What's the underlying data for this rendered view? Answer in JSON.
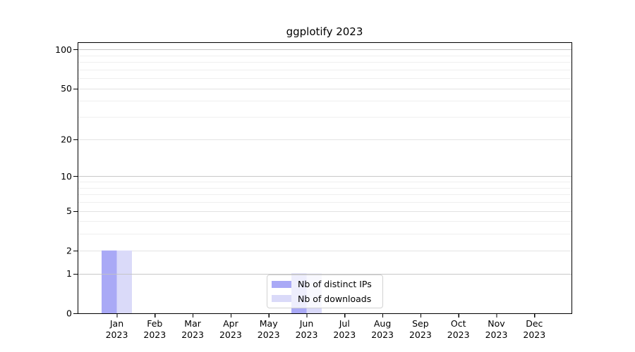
{
  "chart_data": {
    "type": "bar",
    "title": "ggplotify 2023",
    "categories": [
      "Jan",
      "Feb",
      "Mar",
      "Apr",
      "May",
      "Jun",
      "Jul",
      "Aug",
      "Sep",
      "Oct",
      "Nov",
      "Dec"
    ],
    "category_year": "2023",
    "series": [
      {
        "name": "Nb of distinct IPs",
        "color": "#a9a9f6",
        "values": [
          2,
          0,
          0,
          0,
          0,
          1,
          0,
          0,
          0,
          0,
          0,
          0
        ]
      },
      {
        "name": "Nb of downloads",
        "color": "#dadaf9",
        "values": [
          2,
          0,
          0,
          0,
          0,
          1,
          0,
          0,
          0,
          0,
          0,
          0
        ]
      }
    ],
    "y_axis": {
      "ticks": [
        0,
        1,
        2,
        5,
        10,
        20,
        50,
        100
      ],
      "minor_ticks": [
        3,
        4,
        6,
        7,
        8,
        9,
        30,
        40,
        60,
        70,
        80,
        90
      ],
      "scale": "log1p",
      "range": [
        0,
        113.6
      ]
    },
    "legend_position": "bottom-center",
    "grid": "on",
    "colors": {
      "grid_major": "#c2c2c2",
      "grid_mid": "#e3e3e3",
      "grid_minor": "#efefef",
      "axis": "#000000",
      "text": "#000000",
      "background": "#ffffff"
    }
  }
}
